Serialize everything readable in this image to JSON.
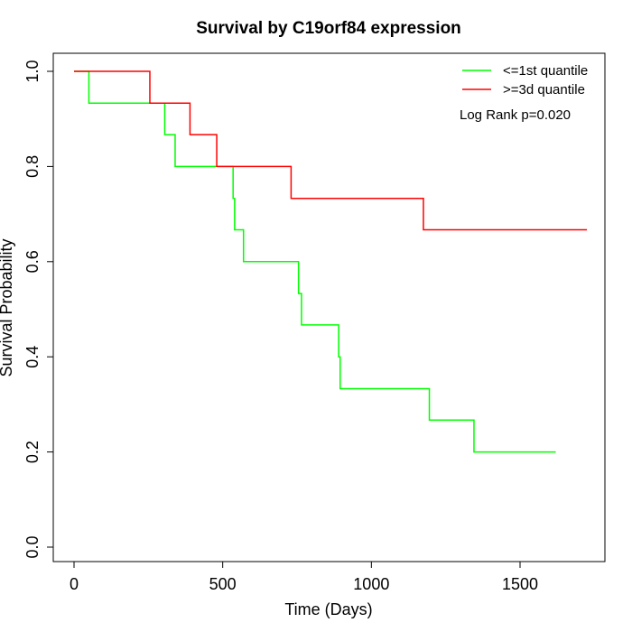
{
  "chart_data": {
    "type": "line",
    "title": "Survival by C19orf84 expression",
    "xlabel": "Time (Days)",
    "ylabel": "Survival Probability",
    "xlim": [
      0,
      1750
    ],
    "ylim": [
      0,
      1.0
    ],
    "x_ticks": [
      0,
      500,
      1000,
      1500
    ],
    "x_tick_labels": [
      "0",
      "500",
      "1000",
      "1500"
    ],
    "y_ticks": [
      0.0,
      0.2,
      0.4,
      0.6,
      0.8,
      1.0
    ],
    "y_tick_labels": [
      "0.0",
      "0.2",
      "0.4",
      "0.6",
      "0.8",
      "1.0"
    ],
    "grid": false,
    "legend_position": "top-right",
    "annotation": "Log Rank p=0.020",
    "series": [
      {
        "name": "<=1st quantile",
        "color": "#00ff00",
        "step": true,
        "x": [
          0,
          50,
          305,
          340,
          535,
          540,
          570,
          755,
          765,
          890,
          895,
          1195,
          1345,
          1620
        ],
        "y": [
          1.0,
          0.933,
          0.867,
          0.8,
          0.733,
          0.667,
          0.6,
          0.533,
          0.467,
          0.4,
          0.333,
          0.267,
          0.2,
          0.2
        ]
      },
      {
        "name": ">=3d quantile",
        "color": "#ff0000",
        "step": true,
        "x": [
          0,
          255,
          390,
          480,
          730,
          1175,
          1725
        ],
        "y": [
          1.0,
          0.933,
          0.867,
          0.8,
          0.733,
          0.667,
          0.667
        ]
      }
    ]
  }
}
